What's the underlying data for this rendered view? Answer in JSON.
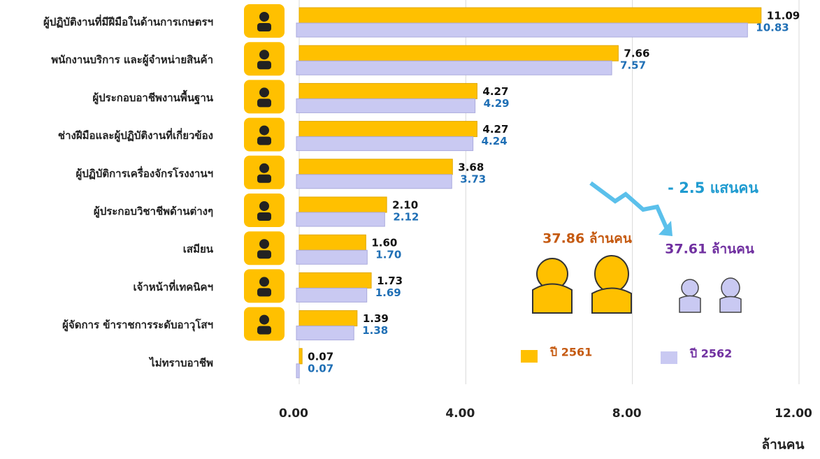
{
  "chart_data": {
    "type": "bar",
    "orientation": "horizontal",
    "categories": [
      "ผู้ปฏิบัติงานที่มีฝีมือในด้านการเกษตรฯ",
      "พนักงานบริการ และผู้จำหน่ายสินค้า",
      "ผู้ประกอบอาชีพงานพื้นฐาน",
      "ช่างฝีมือและผู้ปฏิบัติงานที่เกี่ยวข้อง",
      "ผู้ปฏิบัติการเครื่องจักรโรงงานฯ",
      "ผู้ประกอบวิชาชีพด้านต่างๆ",
      "เสมียน",
      "เจ้าหน้าที่เทคนิคฯ",
      "ผู้จัดการ ข้าราชการระดับอาวุโสฯ",
      "ไม่ทราบอาชีพ"
    ],
    "series": [
      {
        "name": "ปี 2561",
        "color": "#FFC000",
        "label_color": "#111111",
        "legend_color": "#C55A11",
        "values": [
          11.09,
          7.66,
          4.27,
          4.27,
          3.68,
          2.1,
          1.6,
          1.73,
          1.39,
          0.07
        ],
        "value_labels": [
          "11.09",
          "7.66",
          "4.27",
          "4.27",
          "3.68",
          "2.10",
          "1.60",
          "1.73",
          "1.39",
          "0.07"
        ]
      },
      {
        "name": "ปี 2562",
        "color": "#C9C9F2",
        "label_color": "#1F6FB5",
        "legend_color": "#7030A0",
        "values": [
          10.83,
          7.57,
          4.29,
          4.24,
          3.73,
          2.12,
          1.7,
          1.69,
          1.38,
          0.07
        ],
        "value_labels": [
          "10.83",
          "7.57",
          "4.29",
          "4.24",
          "3.73",
          "2.12",
          "1.70",
          "1.69",
          "1.38",
          "0.07"
        ]
      }
    ],
    "xlim": [
      0,
      12
    ],
    "xticks": [
      {
        "value": 0,
        "label": "0.00"
      },
      {
        "value": 4,
        "label": "4.00"
      },
      {
        "value": 8,
        "label": "8.00"
      },
      {
        "value": 12,
        "label": "12.00"
      }
    ],
    "xlabel": "ล้านคน",
    "grid": true,
    "annotations": {
      "change": "- 2.5 แสนคน",
      "total_2561": "37.86 ล้านคน",
      "total_2562": "37.61 ล้านคน"
    }
  }
}
